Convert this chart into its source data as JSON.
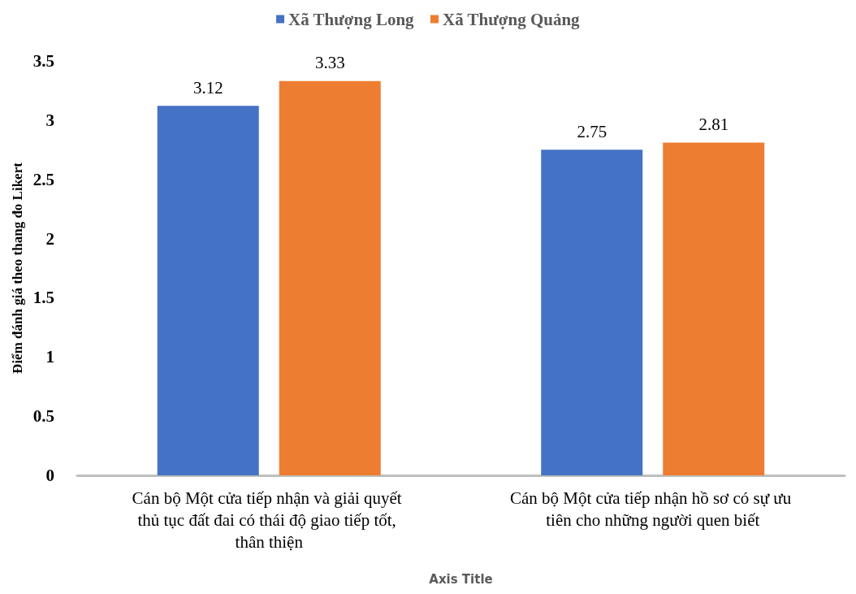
{
  "chart_data": {
    "type": "bar",
    "categories": [
      "Cán bộ Một cửa tiếp nhận và giải quyết thủ tục đất đai có thái độ giao tiếp tốt, thân thiện",
      "Cán bộ Một cửa tiếp nhận hồ sơ có sự ưu tiên cho những người quen biết"
    ],
    "series": [
      {
        "name": "Xã Thượng Long",
        "color": "#4472c4",
        "values": [
          3.12,
          2.75
        ]
      },
      {
        "name": "Xã Thượng Quảng",
        "color": "#ed7d31",
        "values": [
          3.33,
          2.81
        ]
      }
    ],
    "ylabel": "Điểm đánh giá theo thang đo Likert",
    "xlabel": "Axis Title",
    "ylim": [
      0,
      3.5
    ],
    "yticks": [
      0,
      0.5,
      1,
      1.5,
      2,
      2.5,
      3,
      3.5
    ],
    "grid": false,
    "legend": "top",
    "data_labels": true
  }
}
